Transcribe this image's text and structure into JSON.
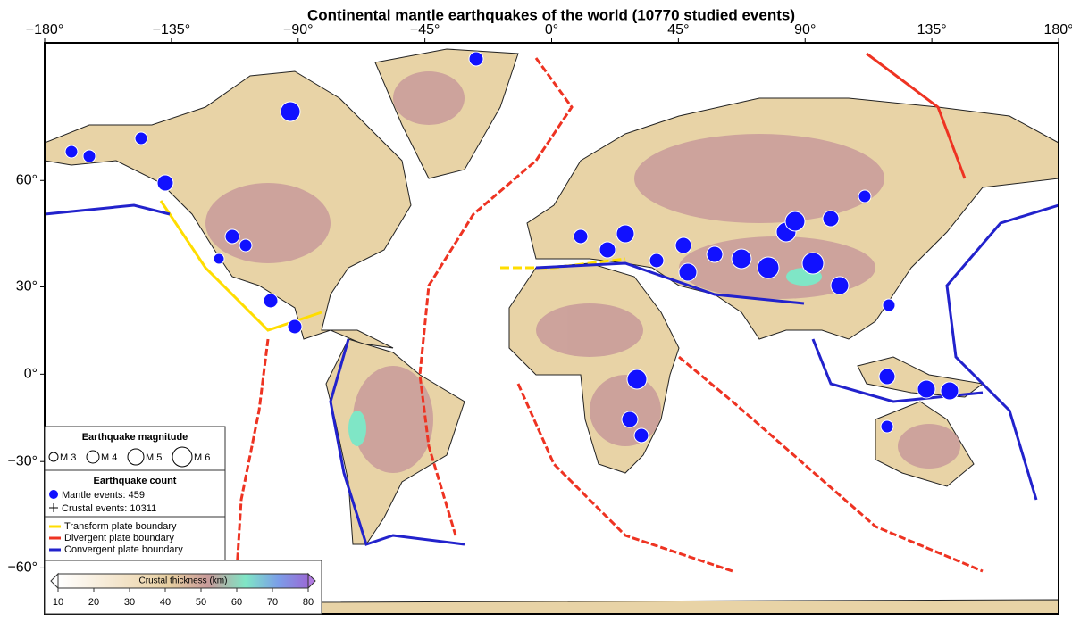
{
  "title": "Continental mantle earthquakes of the world (10770 studied events)",
  "axes": {
    "xlim": [
      -180,
      180
    ],
    "ylim": [
      -70,
      85
    ],
    "xticks": [
      {
        "value": -180,
        "label": "−180°"
      },
      {
        "value": -135,
        "label": "−135°"
      },
      {
        "value": -90,
        "label": "−90°"
      },
      {
        "value": -45,
        "label": "−45°"
      },
      {
        "value": 0,
        "label": "0°"
      },
      {
        "value": 45,
        "label": "45°"
      },
      {
        "value": 90,
        "label": "90°"
      },
      {
        "value": 135,
        "label": "135°"
      },
      {
        "value": 180,
        "label": "180°"
      }
    ],
    "yticks": [
      {
        "value": 60,
        "label": "60°"
      },
      {
        "value": 30,
        "label": "30°"
      },
      {
        "value": 0,
        "label": "0°"
      },
      {
        "value": -30,
        "label": "−30°"
      },
      {
        "value": -60,
        "label": "−60°"
      }
    ]
  },
  "legend": {
    "magnitude_title": "Earthquake magnitude",
    "magnitudes": [
      "M 3",
      "M 4",
      "M 5",
      "M 6"
    ],
    "count_title": "Earthquake count",
    "mantle": "Mantle events: 459",
    "crustal": "Crustal events: 10311",
    "boundaries": [
      "Transform plate boundary",
      "Divergent plate boundary",
      "Convergent plate boundary"
    ]
  },
  "colorbar": {
    "label": "Crustal thickness (km)",
    "ticks": [
      10,
      20,
      30,
      40,
      50,
      60,
      70,
      80
    ]
  }
}
